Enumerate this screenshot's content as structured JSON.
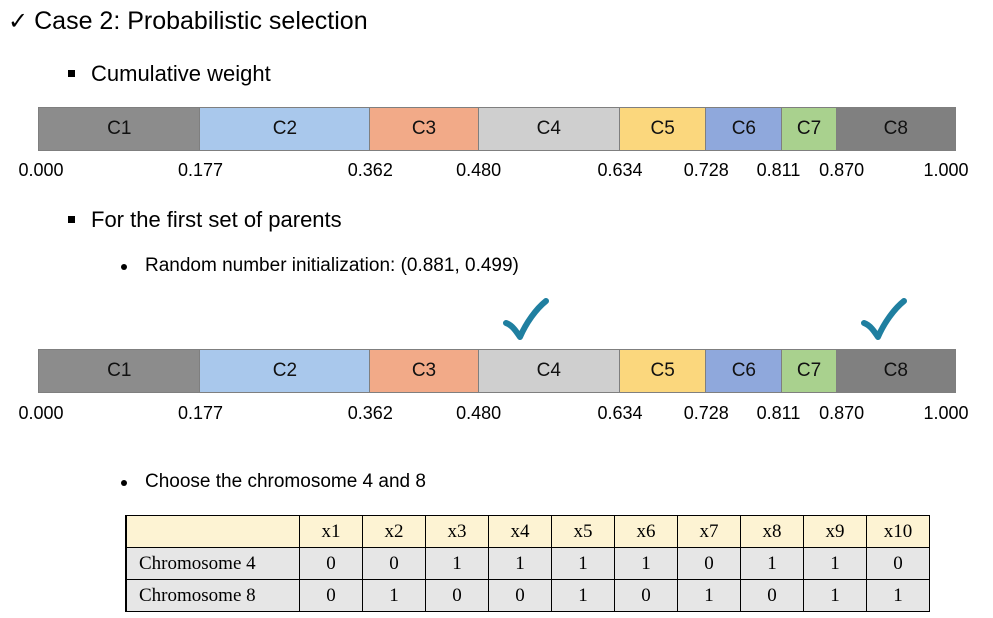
{
  "title": "Case 2: Probabilistic selection",
  "bullets": {
    "cumulative": "Cumulative weight",
    "first_set": "For the first set of parents",
    "random_init": "Random number initialization: (0.881, 0.499)",
    "choose": "Choose the chromosome 4 and 8"
  },
  "segments": [
    {
      "label": "C1",
      "start": 0.0,
      "end": 0.177,
      "color": "#8c8c8c"
    },
    {
      "label": "C2",
      "start": 0.177,
      "end": 0.362,
      "color": "#a9c8ec"
    },
    {
      "label": "C3",
      "start": 0.362,
      "end": 0.48,
      "color": "#f2aa88"
    },
    {
      "label": "C4",
      "start": 0.48,
      "end": 0.634,
      "color": "#cfcfcf"
    },
    {
      "label": "C5",
      "start": 0.634,
      "end": 0.728,
      "color": "#fbd77d"
    },
    {
      "label": "C6",
      "start": 0.728,
      "end": 0.811,
      "color": "#8fa8dc"
    },
    {
      "label": "C7",
      "start": 0.811,
      "end": 0.87,
      "color": "#a9d18e"
    },
    {
      "label": "C8",
      "start": 0.87,
      "end": 1.0,
      "color": "#808080"
    }
  ],
  "ticks": [
    {
      "value": 0.0,
      "label": "0.000"
    },
    {
      "value": 0.177,
      "label": "0.177"
    },
    {
      "value": 0.362,
      "label": "0.362"
    },
    {
      "value": 0.48,
      "label": "0.480"
    },
    {
      "value": 0.634,
      "label": "0.634"
    },
    {
      "value": 0.728,
      "label": "0.728"
    },
    {
      "value": 0.811,
      "label": "0.811"
    },
    {
      "value": 0.87,
      "label": "0.870"
    },
    {
      "value": 1.0,
      "label": "1.000"
    }
  ],
  "selected_points": [
    0.499,
    0.881
  ],
  "check_color": "#1f7fa0",
  "table": {
    "headers": [
      "x1",
      "x2",
      "x3",
      "x4",
      "x5",
      "x6",
      "x7",
      "x8",
      "x9",
      "x10"
    ],
    "rows": [
      {
        "label": "Chromosome 4",
        "values": [
          "0",
          "0",
          "1",
          "1",
          "1",
          "1",
          "0",
          "1",
          "1",
          "0"
        ]
      },
      {
        "label": "Chromosome 8",
        "values": [
          "0",
          "1",
          "0",
          "0",
          "1",
          "0",
          "1",
          "0",
          "1",
          "1"
        ]
      }
    ]
  }
}
